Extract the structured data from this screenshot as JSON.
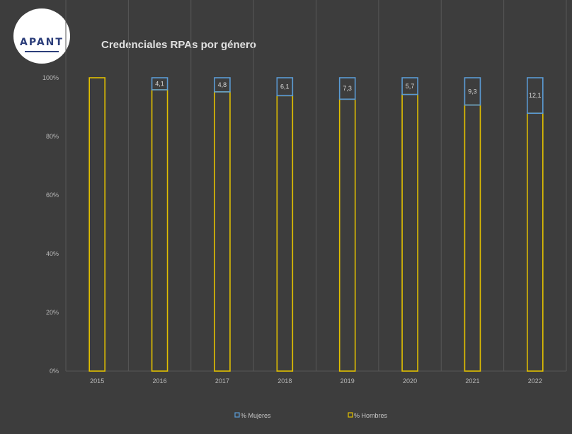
{
  "logo": {
    "text": "APANT"
  },
  "colors": {
    "background": "#3d3d3d",
    "mujeres": "#5b9bd5",
    "hombres": "#e2c000",
    "grid": "#575757"
  },
  "chart_data": {
    "type": "bar",
    "stacked": true,
    "title": "Credenciales RPAs por género",
    "categories": [
      "2015",
      "2016",
      "2017",
      "2018",
      "2019",
      "2020",
      "2021",
      "2022"
    ],
    "series": [
      {
        "name": "% Mujeres",
        "values": [
          0,
          4.1,
          4.8,
          6.1,
          7.3,
          5.7,
          9.3,
          12.1
        ],
        "labels": [
          "",
          "4,1",
          "4,8",
          "6,1",
          "7,3",
          "5,7",
          "9,3",
          "12,1"
        ]
      },
      {
        "name": "% Hombres",
        "values": [
          100,
          95.9,
          95.2,
          93.9,
          92.7,
          94.3,
          90.7,
          87.9
        ]
      }
    ],
    "yticks": [
      "0%",
      "20%",
      "40%",
      "60%",
      "80%",
      "100%"
    ],
    "ylim": [
      0,
      100
    ],
    "grid": true,
    "legend": "bottom"
  }
}
